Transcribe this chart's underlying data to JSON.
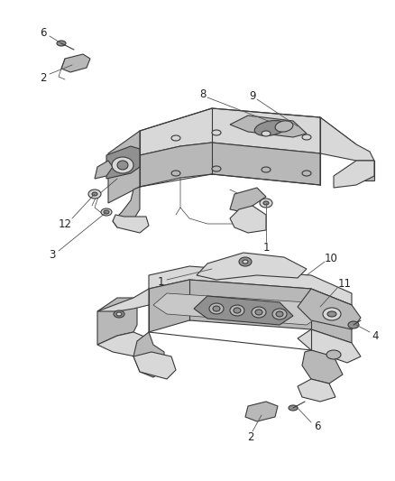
{
  "background_color": "#ffffff",
  "figure_width": 4.38,
  "figure_height": 5.33,
  "dpi": 100,
  "lc": "#3a3a3a",
  "lw": 0.8,
  "tlw": 0.5,
  "fc_light": "#d8d8d8",
  "fc_mid": "#b8b8b8",
  "fc_dark": "#909090",
  "tc": "#222222",
  "fs": 8.5,
  "clc": "#555555",
  "clw": 0.6
}
